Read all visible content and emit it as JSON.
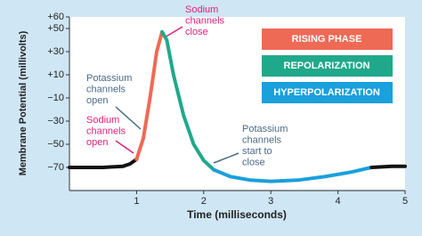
{
  "chart_data": {
    "type": "line",
    "xlabel": "Time (milliseconds)",
    "ylabel": "Membrane Potential (millivolts)",
    "xlim": [
      0,
      5
    ],
    "xticks": [
      1,
      2,
      3,
      4,
      5
    ],
    "ylim": [
      -90,
      60
    ],
    "yticks": [
      {
        "value": 60,
        "label": "+60"
      },
      {
        "value": 50,
        "label": "+50"
      },
      {
        "value": 30,
        "label": "+30"
      },
      {
        "value": 10,
        "label": "+10"
      },
      {
        "value": -10,
        "label": "−10"
      },
      {
        "value": -30,
        "label": "−30"
      },
      {
        "value": -50,
        "label": "−50"
      },
      {
        "value": -70,
        "label": "−70"
      }
    ],
    "series": [
      {
        "color": "#111111",
        "x": [
          0,
          0.5,
          0.8,
          0.9,
          1.0
        ],
        "values": [
          -70,
          -70,
          -69,
          -67,
          -63
        ]
      },
      {
        "name": "RISING PHASE",
        "color": "#ef6a55",
        "x": [
          1.0,
          1.1,
          1.2,
          1.3,
          1.38
        ],
        "values": [
          -63,
          -45,
          -10,
          30,
          47
        ]
      },
      {
        "name": "REPOLARIZATION",
        "color": "#1fa98a",
        "x": [
          1.38,
          1.45,
          1.55,
          1.7,
          1.85,
          2.0,
          2.15
        ],
        "values": [
          47,
          40,
          10,
          -25,
          -50,
          -64,
          -72
        ]
      },
      {
        "name": "HYPERPOLARIZATION",
        "color": "#1aa0db",
        "x": [
          2.15,
          2.4,
          2.7,
          3.0,
          3.4,
          3.8,
          4.2,
          4.5
        ],
        "values": [
          -72,
          -78,
          -81,
          -82,
          -81,
          -78,
          -74,
          -70
        ]
      },
      {
        "color": "#111111",
        "x": [
          4.5,
          4.8,
          5.0
        ],
        "values": [
          -70,
          -69,
          -69
        ]
      }
    ],
    "annotations": [
      {
        "lines": [
          "Sodium",
          "channels",
          "close"
        ],
        "color": "#e0207a"
      },
      {
        "lines": [
          "Potassium",
          "channels",
          "open"
        ],
        "color": "#4a6a8a"
      },
      {
        "lines": [
          "Sodium",
          "channels",
          "open"
        ],
        "color": "#e0207a"
      },
      {
        "lines": [
          "Potassium",
          "channels",
          "start to",
          "close"
        ],
        "color": "#4a6a8a"
      }
    ]
  }
}
